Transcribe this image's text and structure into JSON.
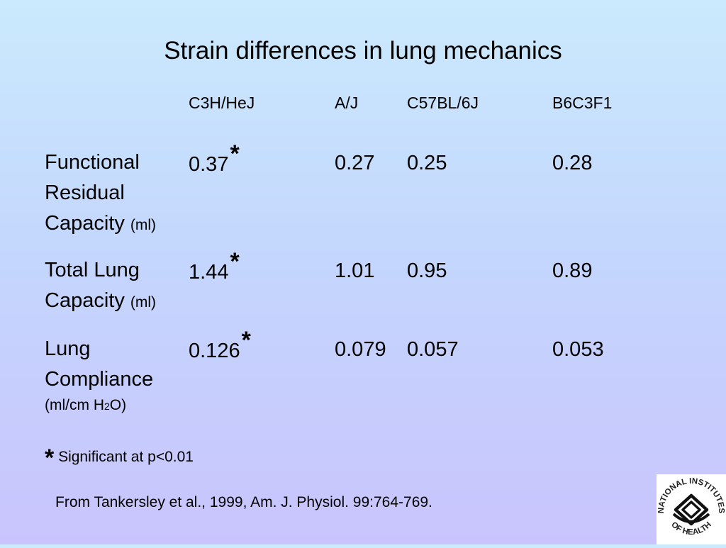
{
  "title": "Strain differences in lung mechanics",
  "columns": [
    "C3H/HeJ",
    "A/J",
    "C57BL/6J",
    "B6C3F1"
  ],
  "rows": [
    {
      "label_lines": [
        "Functional",
        "Residual",
        "Capacity"
      ],
      "unit": "(ml)",
      "values": [
        "0.37",
        "0.27",
        "0.25",
        "0.28"
      ],
      "marker": "*"
    },
    {
      "label_lines": [
        "Total Lung",
        "Capacity"
      ],
      "unit": "(ml)",
      "values": [
        "1.44",
        "1.01",
        "0.95",
        "0.89"
      ],
      "marker": "*"
    },
    {
      "label_lines": [
        "Lung",
        "Compliance"
      ],
      "unit_prefix": "(ml/cm H",
      "unit_subscript": "2",
      "unit_suffix": "O)",
      "values": [
        "0.126",
        "0.079",
        "0.057",
        "0.053"
      ],
      "marker": "*"
    }
  ],
  "footnote": {
    "marker": "*",
    "text": "Significant at p<0.01"
  },
  "citation": "From Tankersley et al., 1999, Am. J. Physiol. 99:764-769.",
  "logo": {
    "text": "NATIONAL INSTITUTES OF HEALTH",
    "icon": "nih-logo-icon",
    "arc_top": "NATIONAL INSTITUTES",
    "arc_bottom": "OF HEALTH"
  }
}
